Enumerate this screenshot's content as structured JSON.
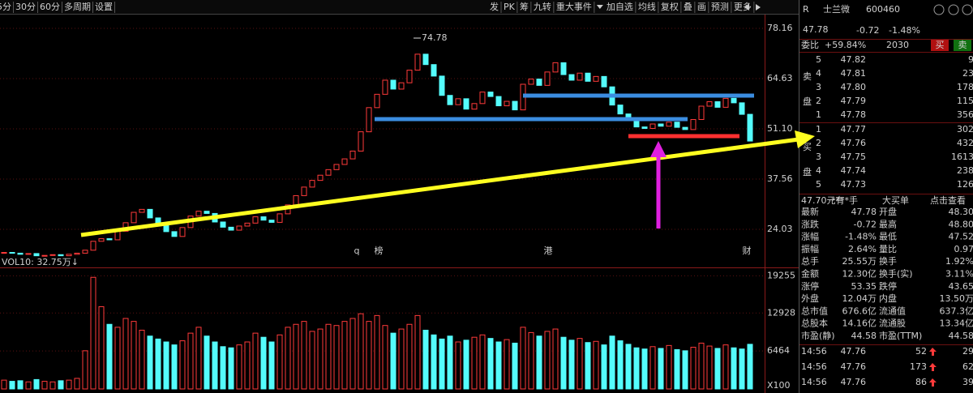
{
  "toolbar": {
    "left": [
      "5分",
      "30分",
      "60分",
      "多周期",
      "设置"
    ],
    "right": [
      "发",
      "PK",
      "筹",
      "九转",
      "重大事件",
      "加自选",
      "均线",
      "复权",
      "叠",
      "画",
      "预测",
      "更多"
    ]
  },
  "chart_data": {
    "type": "candlestick",
    "closes": [
      17.8,
      17.6,
      17.3,
      17.5,
      16.9,
      17.0,
      17.2,
      16.9,
      17.3,
      17.6,
      18.4,
      20.8,
      21.5,
      21.2,
      23.5,
      25.8,
      28.6,
      29.4,
      27.1,
      25.0,
      23.4,
      22.1,
      24.5,
      27.6,
      28.9,
      28.3,
      26.0,
      24.6,
      23.8,
      24.9,
      25.7,
      27.4,
      26.5,
      25.9,
      28.2,
      30.6,
      33.1,
      35.4,
      37.2,
      38.6,
      40.1,
      41.5,
      43.0,
      45.1,
      50.3,
      56.8,
      60.4,
      64.2,
      61.8,
      63.5,
      66.9,
      71.2,
      68.4,
      65.3,
      60.1,
      57.6,
      59.2,
      56.4,
      57.9,
      61.0,
      59.8,
      57.3,
      58.5,
      56.2,
      63.1,
      64.5,
      62.8,
      66.4,
      68.9,
      65.7,
      64.2,
      66.1,
      63.9,
      65.2,
      62.4,
      57.5,
      55.1,
      53.8,
      51.6,
      51.2,
      52.4,
      51.8,
      52.9,
      51.5,
      50.9,
      53.6,
      57.2,
      58.4,
      56.9,
      59.3,
      58.1,
      55.0,
      47.8
    ],
    "high_label": "74.78",
    "ylim": [
      15.95,
      81.43
    ],
    "yticks": [
      78.16,
      64.63,
      {
        "value": 51.1,
        "label": "51.10"
      },
      37.56,
      24.03
    ],
    "grid": true,
    "event_markers": [
      "q",
      "榜",
      "港",
      "财"
    ],
    "volume": {
      "title": "VOL10: 32.75万↓",
      "values": [
        1500,
        1300,
        1400,
        1200,
        1600,
        1300,
        1200,
        1400,
        1500,
        1800,
        6500,
        19000,
        14000,
        11000,
        10500,
        12000,
        11500,
        10000,
        9000,
        8500,
        8000,
        7500,
        8200,
        9500,
        10500,
        9000,
        8000,
        7200,
        7000,
        7500,
        8000,
        9500,
        8800,
        8000,
        9200,
        10500,
        11000,
        11500,
        9800,
        10200,
        11000,
        10800,
        11500,
        12000,
        12800,
        11500,
        12500,
        10800,
        9500,
        10200,
        11000,
        12500,
        10000,
        9200,
        8500,
        9000,
        8000,
        8300,
        8800,
        9200,
        8600,
        8000,
        8400,
        7800,
        10500,
        9600,
        9000,
        9800,
        10200,
        8800,
        8300,
        8600,
        7900,
        8100,
        7500,
        9000,
        8200,
        7600,
        7000,
        6800,
        7200,
        6900,
        7400,
        6700,
        6500,
        7100,
        7800,
        7300,
        6900,
        7500,
        7000,
        6800,
        7600
      ],
      "ylim": [
        0,
        20000
      ],
      "yticks": [
        6464,
        12928,
        19255
      ],
      "unit_label": "X100"
    }
  },
  "quote": {
    "flag": "R",
    "name": "士兰微",
    "code": "600460",
    "price": "47.78",
    "change": "-0.72",
    "change_pct": "-1.48%",
    "weibi_label": "委比",
    "weibi": "+59.84%",
    "weicha": "2030",
    "buy_btn": "买",
    "sell_btn": "卖",
    "sell_side": [
      "卖",
      "盘"
    ],
    "buy_side": [
      "买",
      "盘"
    ],
    "asks": [
      [
        "5",
        "47.82",
        "9"
      ],
      [
        "4",
        "47.81",
        "23"
      ],
      [
        "3",
        "47.80",
        "178"
      ],
      [
        "2",
        "47.79",
        "115"
      ],
      [
        "1",
        "47.78",
        "356"
      ]
    ],
    "bids": [
      [
        "1",
        "47.77",
        "302"
      ],
      [
        "2",
        "47.76",
        "432"
      ],
      [
        "3",
        "47.75",
        "1613"
      ],
      [
        "4",
        "47.74",
        "238"
      ],
      [
        "5",
        "47.73",
        "126"
      ]
    ],
    "big_order": [
      "47.70元有",
      "****手",
      "大买单",
      "点击查看"
    ],
    "stats": [
      [
        "最新",
        "47.78",
        "开盘",
        "48.30"
      ],
      [
        "涨跌",
        "-0.72",
        "最高",
        "48.80"
      ],
      [
        "涨幅",
        "-1.48%",
        "最低",
        "47.52"
      ],
      [
        "振幅",
        "2.64%",
        "量比",
        "0.97"
      ],
      [
        "总手",
        "25.55万",
        "换手",
        "1.92%"
      ],
      [
        "金额",
        "12.30亿",
        "换手(实)",
        "3.11%"
      ],
      [
        "涨停",
        "53.35",
        "跌停",
        "43.65"
      ],
      [
        "外盘",
        "12.04万",
        "内盘",
        "13.50万"
      ],
      [
        "总市值",
        "676.6亿",
        "流通值",
        "637.3亿"
      ],
      [
        "总股本",
        "14.16亿",
        "流通股",
        "13.34亿"
      ],
      [
        "市盈(静)",
        "44.58",
        "市盈(TTM)",
        "44.58"
      ]
    ],
    "ticks": [
      [
        "14:56",
        "47.76",
        "52",
        "29"
      ],
      [
        "14:56",
        "47.76",
        "173",
        "62"
      ],
      [
        "14:56",
        "47.76",
        "86",
        "39"
      ]
    ]
  }
}
